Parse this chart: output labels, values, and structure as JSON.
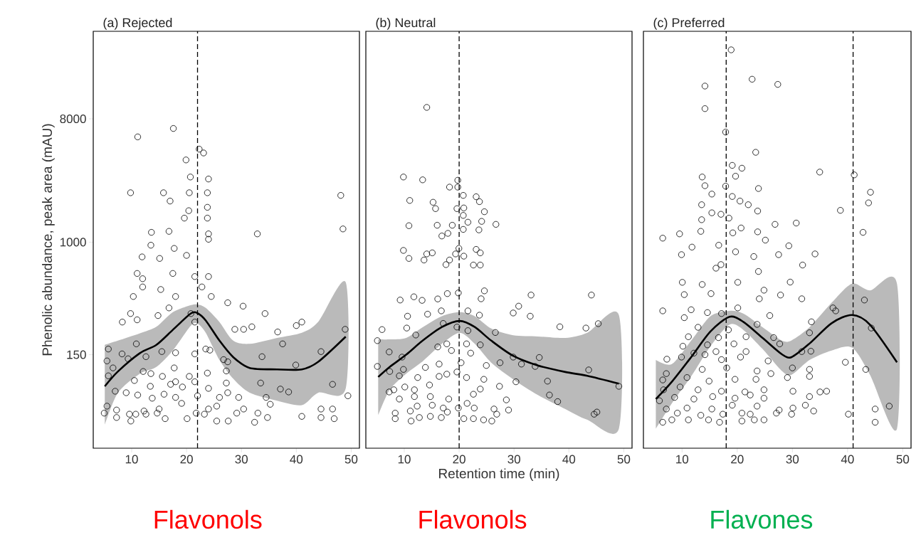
{
  "chart_data": [
    {
      "type": "scatter",
      "title": "(a) Rejected",
      "ylabel": "Phenolic abundance, peak area (mAU)",
      "annotations": [
        "Flavonols"
      ],
      "log": "y",
      "xlim": [
        3,
        51.5
      ],
      "ylim": [
        31,
        35000
      ],
      "xticks": [
        10,
        20,
        30,
        40,
        50
      ],
      "yticks": [
        150,
        1000,
        8000
      ],
      "ref_lines": [
        {
          "axis": "x",
          "value": 22,
          "line_style": "dashed"
        }
      ],
      "series": [
        {
          "marker": "circle",
          "color": "#000000",
          "x": [
            17.6,
            11.1,
            22.3,
            23.1,
            19.9,
            20.7,
            24,
            9.8,
            15.8,
            17,
            20.5,
            23.8,
            23.8,
            20.4,
            19.6,
            23.8,
            48.1,
            48.5,
            32.9,
            13.6,
            16.8,
            24,
            24,
            13.5,
            17.75,
            20,
            11.9,
            15.1,
            11,
            12,
            17.5,
            21.5,
            24,
            12,
            15.3,
            10.3,
            18,
            24.5,
            22.8,
            27.5,
            30.3,
            9.8,
            16.8,
            34.3,
            8.3,
            11,
            14.8,
            20.8,
            21.5,
            28.8,
            30.4,
            31.9,
            36.6,
            40,
            41,
            48.9,
            5.75,
            10.85,
            8.25,
            9.35,
            12.6,
            15.5,
            18,
            21.5,
            23.5,
            24.25,
            26.75,
            27.5,
            33.75,
            37.5,
            44.5,
            39.9,
            5.5,
            6.6,
            5.75,
            12.1,
            13.5,
            15.6,
            17.75,
            18,
            20.5,
            23.8,
            27.25,
            10.5,
            13.4,
            17.1,
            19.25,
            21.5,
            24,
            27.25,
            33.5,
            37.1,
            38.6,
            46.6,
            49.4,
            7,
            9,
            11.1,
            13.75,
            15.9,
            18,
            22,
            26,
            27.5,
            29.5,
            34.5,
            35.25,
            5.5,
            7.25,
            12.25,
            15,
            19.1,
            24,
            25.5,
            30.4,
            44.5,
            46.6,
            5,
            7.25,
            9.6,
            10.75,
            12.6,
            14.65,
            16.1,
            20.1,
            21.75,
            23.25,
            25.5,
            27.6,
            29.15,
            32.4,
            33,
            34.75,
            41,
            44.5,
            46.9,
            9.85
          ],
          "values": [
            6800,
            5900,
            4800,
            4500,
            4000,
            3000,
            2900,
            2300,
            2300,
            2000,
            2300,
            2300,
            1800,
            1700,
            1500,
            1500,
            2200,
            1250,
            1150,
            1180,
            1200,
            1150,
            1050,
            950,
            900,
            800,
            780,
            760,
            590,
            540,
            590,
            560,
            560,
            470,
            450,
            400,
            400,
            400,
            470,
            360,
            340,
            300,
            330,
            300,
            260,
            270,
            290,
            300,
            260,
            230,
            230,
            240,
            220,
            245,
            260,
            230,
            165,
            180,
            152,
            140,
            145,
            158,
            155,
            152,
            165,
            162,
            138,
            133,
            145,
            180,
            158,
            126,
            135,
            120,
            105,
            113,
            109,
            104,
            120,
            95,
            104,
            110,
            114,
            97,
            88,
            91,
            87,
            95,
            85,
            93,
            93,
            84,
            80,
            91,
            75,
            81,
            79,
            76,
            72,
            77,
            73,
            75,
            73,
            79,
            73,
            73,
            65,
            63,
            59,
            58,
            60,
            66,
            60,
            63,
            60,
            60,
            60,
            56,
            52,
            55,
            55,
            55,
            56,
            51,
            51,
            56,
            55,
            49,
            49,
            56,
            48,
            56,
            52,
            53,
            52,
            51,
            49
          ]
        },
        {
          "type": "line",
          "color": "#000000",
          "x": [
            5.1,
            7.5,
            11.5,
            14.5,
            17.5,
            20.75,
            22,
            23.5,
            26,
            28.5,
            31.5,
            36.5,
            41,
            44,
            49
          ],
          "values": [
            88,
            113,
            154,
            177,
            228,
            300,
            302,
            267,
            190,
            144,
            120,
            117,
            117,
            133,
            203
          ],
          "upper": [
            177,
            190,
            215,
            240,
            307,
            345,
            350,
            330,
            260,
            190,
            180,
            199,
            217,
            261,
            508
          ],
          "lower": [
            46,
            79,
            109,
            122,
            161,
            244,
            253,
            217,
            137,
            100,
            79,
            69,
            64,
            79,
            85
          ]
        }
      ]
    },
    {
      "type": "scatter",
      "title": "(b) Neutral",
      "xlabel": "Retention time (min)",
      "annotations": [
        "Flavonols"
      ],
      "log": "y",
      "tick_labels": "x",
      "xlim": [
        3,
        51.5
      ],
      "ylim": [
        31,
        35000
      ],
      "xticks": [
        10,
        20,
        30,
        40,
        50
      ],
      "ref_lines": [
        {
          "axis": "x",
          "value": 20,
          "line_style": "dashed"
        }
      ],
      "series": [
        {
          "marker": "circle",
          "color": "#000000",
          "x": [
            14.1,
            9.85,
            13.35,
            19.75,
            18.25,
            19.75,
            11,
            20.75,
            23.1,
            23.7,
            15.25,
            15.7,
            19.6,
            20.85,
            24.6,
            20.75,
            10.85,
            16,
            18.75,
            21.6,
            24.1,
            26.7,
            16.85,
            17.95,
            20.75,
            23.6,
            9.85,
            10.85,
            14.1,
            15.1,
            13.6,
            19.35,
            20.85,
            23.1,
            23.85,
            19.95,
            17.6,
            18.25,
            22.6,
            23.85,
            9.25,
            11.75,
            13.25,
            16.1,
            17.85,
            19.85,
            24.6,
            24,
            33.1,
            44.1,
            30.85,
            29.85,
            32.95,
            10.6,
            14.25,
            16.75,
            21.6,
            23.7,
            5.95,
            10.45,
            17.1,
            19.6,
            21.6,
            26.6,
            38.35,
            43.1,
            45.35,
            5.1,
            12.1,
            17.75,
            21.35,
            23.85,
            7.25,
            9.6,
            16.1,
            18.6,
            22.1,
            29.85,
            34.6,
            5.1,
            13.85,
            16.35,
            20.35,
            24.95,
            27.45,
            31.35,
            33.85,
            43.6,
            7.35,
            9.85,
            16.35,
            17.75,
            19.6,
            21.35,
            24.5,
            9.1,
            12.45,
            30.35,
            36.1,
            49.1,
            7.25,
            8.1,
            10.1,
            11.85,
            14.6,
            22.6,
            23.85,
            27.35,
            9.1,
            11.85,
            14.75,
            18.1,
            21.45,
            28.6,
            36.45,
            37.95,
            12.35,
            15.1,
            17.1,
            19.85,
            22.75,
            26.35,
            8.35,
            11.1,
            17.85,
            29,
            44.6,
            8.35,
            11.25,
            12.75,
            14.75,
            16.75,
            20.85,
            22.6,
            24.45,
            25.95,
            26.85,
            45.1
          ],
          "values": [
            9700,
            3000,
            2860,
            2840,
            2530,
            2530,
            2020,
            2200,
            2150,
            1980,
            1960,
            1760,
            1760,
            1780,
            1670,
            1570,
            1320,
            1330,
            1330,
            1400,
            1420,
            1350,
            1110,
            1160,
            1240,
            1230,
            870,
            760,
            820,
            835,
            740,
            820,
            790,
            885,
            835,
            900,
            685,
            740,
            680,
            680,
            377,
            398,
            375,
            384,
            420,
            425,
            440,
            385,
            410,
            410,
            340,
            303,
            287,
            287,
            297,
            314,
            314,
            292,
            229,
            235,
            254,
            239,
            225,
            218,
            240,
            235,
            253,
            190,
            209,
            180,
            180,
            177,
            157,
            144,
            171,
            161,
            154,
            144,
            143,
            123,
            121,
            128,
            131,
            125,
            131,
            128,
            123,
            116,
            113,
            117,
            104,
            108,
            112,
            102,
            99,
            105,
            102,
            95,
            96,
            88,
            80,
            83,
            87,
            83,
            90,
            77,
            84,
            88,
            71,
            74,
            74,
            71,
            66,
            70,
            76,
            68,
            63,
            64,
            61,
            61,
            61,
            60,
            56,
            58,
            57,
            59,
            55,
            51,
            49,
            52,
            53,
            52,
            51,
            51,
            50,
            49,
            55,
            57
          ]
        },
        {
          "type": "line",
          "color": "#000000",
          "x": [
            5.25,
            7.35,
            10.35,
            13.35,
            16.85,
            20.1,
            22.85,
            25.85,
            29.85,
            34.35,
            39.35,
            43.35,
            49.1
          ],
          "values": [
            103,
            122,
            150,
            190,
            239,
            265,
            239,
            190,
            147,
            125,
            112,
            105,
            92
          ],
          "upper": [
            194,
            194,
            199,
            238,
            287,
            307,
            287,
            233,
            208,
            204,
            199,
            217,
            293
          ],
          "lower": [
            54,
            83,
            109,
            134,
            180,
            217,
            180,
            131,
            99,
            76,
            60,
            50,
            43
          ]
        }
      ]
    },
    {
      "type": "scatter",
      "title": "(c) Preferred",
      "annotations": [
        "Flavones"
      ],
      "log": "y",
      "tick_labels": "x",
      "xlim": [
        3,
        51.5
      ],
      "ylim": [
        31,
        35000
      ],
      "xticks": [
        10,
        20,
        30,
        40,
        50
      ],
      "ref_lines": [
        {
          "axis": "x",
          "value": 18,
          "line_style": "dashed"
        },
        {
          "axis": "x",
          "value": 41,
          "line_style": "dashed"
        }
      ],
      "series": [
        {
          "marker": "circle",
          "color": "#000000",
          "x": [
            18.9,
            22.7,
            27.35,
            14.15,
            14.15,
            17.9,
            23.35,
            19.1,
            20.85,
            19.7,
            34.95,
            41.2,
            13.65,
            14.15,
            17.9,
            23.85,
            44.15,
            43.8,
            15.4,
            19.1,
            20.5,
            22,
            13.55,
            15.4,
            17.05,
            23.7,
            38.7,
            13.55,
            18.5,
            20.7,
            26.85,
            30.7,
            6.5,
            9.55,
            13.4,
            19.2,
            23.7,
            42.8,
            25.1,
            11.8,
            16.65,
            29.35,
            9.9,
            19.7,
            23,
            27.5,
            34.1,
            17.05,
            31.85,
            23.85,
            16.15,
            10.05,
            29.6,
            13.65,
            20.1,
            10.4,
            15.25,
            24.85,
            27.85,
            31.7,
            24,
            43.05,
            6.5,
            11.65,
            14.6,
            17.15,
            20.1,
            37.35,
            37.85,
            10.4,
            25.9,
            33.45,
            12.9,
            18.4,
            23.6,
            44.3,
            11.15,
            16.6,
            21.6,
            26.6,
            33.1,
            10.15,
            14.6,
            19.4,
            27.7,
            12.15,
            16.15,
            21.6,
            31.7,
            33.35,
            7.25,
            9.9,
            14.15,
            17.15,
            20.6,
            25.6,
            39.6,
            43.3,
            7.15,
            13.65,
            18.1,
            23.6,
            26.1,
            30,
            33.1,
            6.5,
            10.9,
            14.9,
            19.6,
            23.4,
            29.1,
            33.1,
            6.65,
            9.65,
            12.9,
            17.15,
            21.4,
            24.85,
            30.1,
            35,
            36.2,
            5.9,
            8.65,
            12.15,
            15.55,
            19.6,
            22.35,
            24.85,
            33.1,
            7.15,
            10.9,
            15.4,
            19.1,
            23.6,
            27.6,
            30.1,
            32.35,
            45,
            47.55,
            9.15,
            13.4,
            17.4,
            20.85,
            22.35,
            27.1,
            29.85,
            33.85,
            40.15,
            6.5,
            8.15,
            11.15,
            14.8,
            16.8,
            20.85,
            24.85,
            45,
            23.1
          ],
          "values": [
            25600,
            15600,
            14300,
            13900,
            9500,
            6400,
            4550,
            3650,
            3480,
            3040,
            3260,
            3110,
            3000,
            2590,
            2570,
            2470,
            2320,
            1940,
            2250,
            2160,
            2000,
            1880,
            1880,
            1640,
            1600,
            1690,
            1710,
            1460,
            1500,
            1270,
            1350,
            1380,
            1070,
            1150,
            1200,
            1170,
            1190,
            1180,
            1035,
            920,
            950,
            940,
            810,
            850,
            785,
            810,
            820,
            685,
            680,
            610,
            645,
            508,
            510,
            490,
            508,
            413,
            420,
            445,
            410,
            385,
            385,
            377,
            314,
            320,
            305,
            300,
            330,
            330,
            314,
            280,
            290,
            261,
            238,
            228,
            250,
            235,
            203,
            200,
            203,
            200,
            217,
            173,
            177,
            180,
            180,
            154,
            158,
            158,
            158,
            159,
            139,
            144,
            150,
            138,
            144,
            135,
            132,
            117,
            109,
            117,
            120,
            114,
            109,
            120,
            117,
            98,
            102,
            96,
            99,
            99,
            102,
            104,
            83,
            87,
            83,
            81,
            80,
            83,
            81,
            80,
            81,
            69,
            73,
            71,
            74,
            72,
            76,
            72,
            74,
            60,
            61,
            60,
            64,
            63,
            59,
            61,
            64,
            60,
            63,
            56,
            54,
            55,
            56,
            55,
            56,
            55,
            58,
            55,
            48,
            50,
            50,
            50,
            48,
            49,
            50,
            48,
            50
          ]
        },
        {
          "type": "line",
          "color": "#000000",
          "x": [
            5.25,
            8.15,
            11.65,
            15.15,
            18.6,
            21.1,
            24.6,
            28.1,
            29.85,
            33.1,
            37.1,
            40.8,
            44.05,
            48.95
          ],
          "values": [
            71,
            95,
            144,
            222,
            284,
            261,
            199,
            151,
            144,
            181,
            255,
            293,
            249,
            132
          ],
          "upper": [
            137,
            128,
            190,
            287,
            314,
            300,
            238,
            190,
            191,
            238,
            360,
            497,
            443,
            497
          ],
          "lower": [
            43,
            66,
            104,
            173,
            249,
            228,
            165,
            114,
            107,
            137,
            161,
            169,
            107,
            43
          ]
        }
      ]
    }
  ]
}
